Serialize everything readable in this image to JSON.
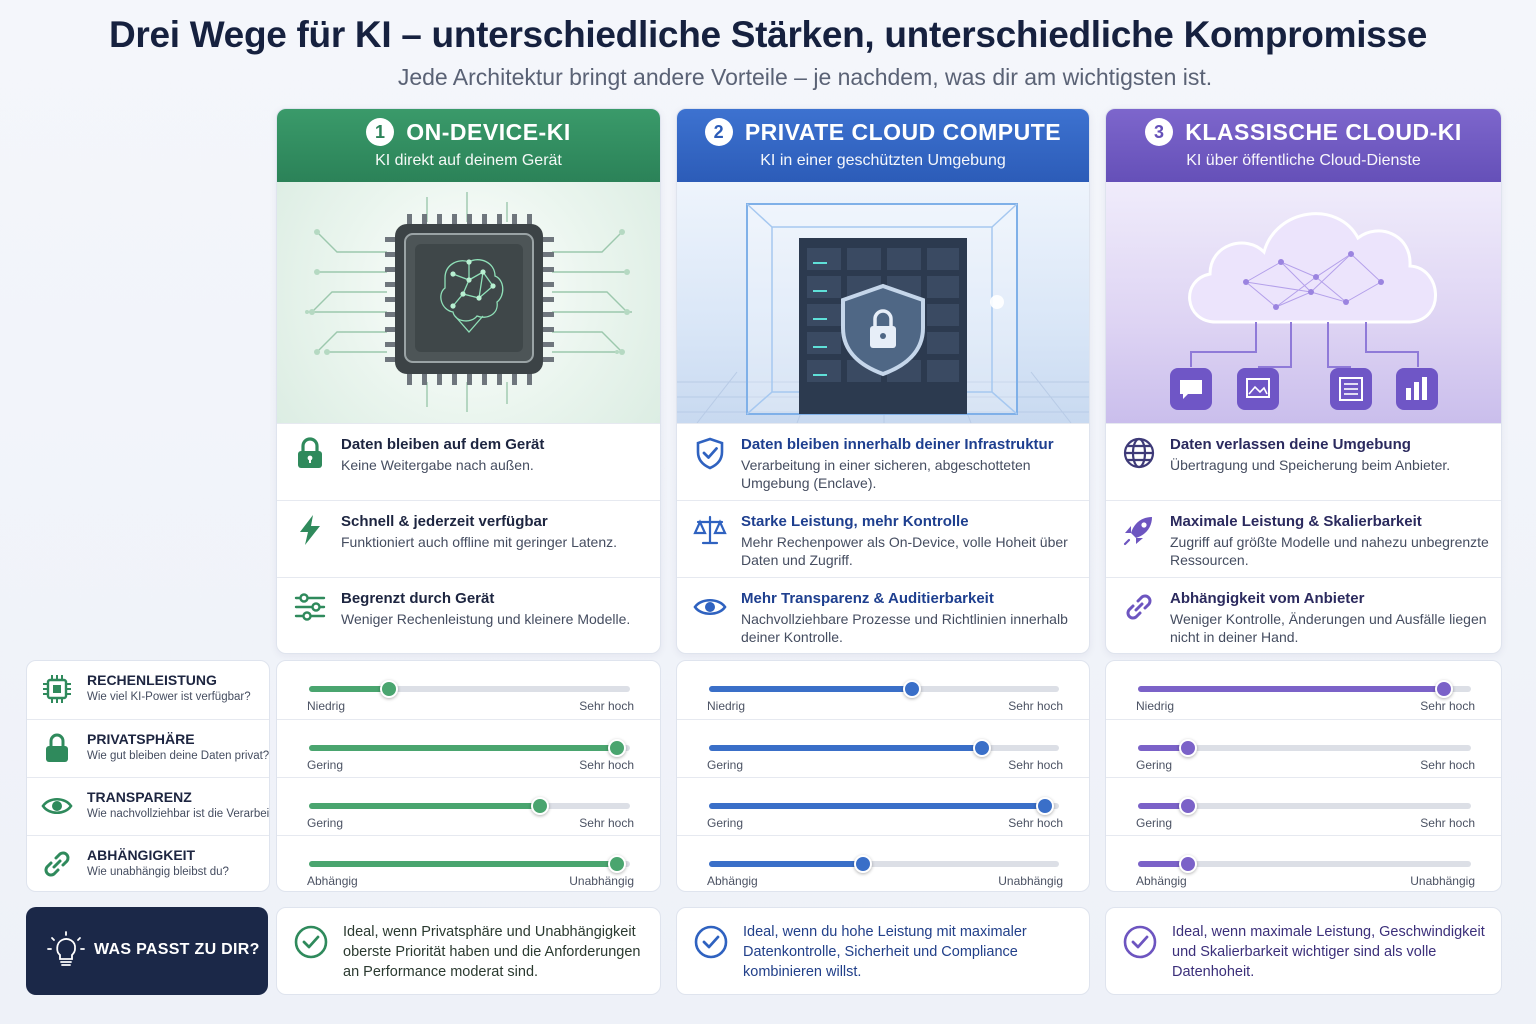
{
  "header": {
    "title": "Drei Wege für KI – unterschiedliche Stärken, unterschiedliche Kompromisse",
    "subtitle": "Jede Architektur bringt andere Vorteile – je nachdem, was dir am wichtigsten ist."
  },
  "columns": [
    {
      "number": "1",
      "title": "ON-DEVICE-KI",
      "subtitle": "KI direkt auf deinem Gerät",
      "color": "#2f8a5c",
      "image_icon": "ai-chip-brain",
      "features": [
        {
          "icon": "lock-icon",
          "title": "Daten bleiben auf dem Gerät",
          "desc": "Keine Weitergabe nach außen."
        },
        {
          "icon": "lightning-icon",
          "title": "Schnell & jederzeit verfügbar",
          "desc": "Funktioniert auch offline mit geringer Latenz."
        },
        {
          "icon": "sliders-icon",
          "title": "Begrenzt durch Gerät",
          "desc": "Weniger Rechenleistung und kleinere Modelle."
        }
      ],
      "recommendation": "Ideal, wenn Privatsphäre und Unabhängigkeit oberste Priorität haben und die Anforderungen an Performance moderat sind."
    },
    {
      "number": "2",
      "title": "PRIVATE CLOUD COMPUTE",
      "subtitle": "KI in einer geschützten Umgebung",
      "color": "#2f62c0",
      "image_icon": "secure-server-enclave",
      "features": [
        {
          "icon": "shield-check-icon",
          "title": "Daten bleiben innerhalb deiner Infrastruktur",
          "desc": "Verarbeitung in einer sicheren, abgeschotteten Umgebung (Enclave)."
        },
        {
          "icon": "scale-icon",
          "title": "Starke Leistung, mehr Kontrolle",
          "desc": "Mehr Rechenpower als On-Device, volle Hoheit über Daten und Zugriff."
        },
        {
          "icon": "eye-icon",
          "title": "Mehr Transparenz & Auditierbarkeit",
          "desc": "Nachvollziehbare Prozesse und Richtlinien innerhalb deiner Kontrolle."
        }
      ],
      "recommendation": "Ideal, wenn du hohe Leistung mit maximaler Datenkontrolle, Sicherheit und Compliance kombinieren willst."
    },
    {
      "number": "3",
      "title": "KLASSISCHE CLOUD-KI",
      "subtitle": "KI über öffentliche Cloud-Dienste",
      "color": "#6d55c0",
      "image_icon": "cloud-network",
      "features": [
        {
          "icon": "globe-icon",
          "title": "Daten verlassen deine Umgebung",
          "desc": "Übertragung und Speicherung beim Anbieter."
        },
        {
          "icon": "rocket-icon",
          "title": "Maximale Leistung & Skalierbarkeit",
          "desc": "Zugriff auf größte Modelle und nahezu unbegrenzte Ressourcen."
        },
        {
          "icon": "link-icon",
          "title": "Abhängigkeit vom Anbieter",
          "desc": "Weniger Kontrolle, Änderungen und Ausfälle liegen nicht in deiner Hand."
        }
      ],
      "recommendation": "Ideal, wenn maximale Leistung, Geschwindigkeit und Skalierbarkeit wichtiger sind als volle Datenhoheit."
    }
  ],
  "criteria": [
    {
      "icon": "chip-icon",
      "title": "RECHENLEISTUNG",
      "desc": "Wie viel KI-Power ist verfügbar?",
      "low": "Niedrig",
      "high": "Sehr hoch"
    },
    {
      "icon": "lock-icon",
      "title": "PRIVATSPHÄRE",
      "desc": "Wie gut bleiben deine Daten privat?",
      "low": "Gering",
      "high": "Sehr hoch"
    },
    {
      "icon": "eye-icon",
      "title": "TRANSPARENZ",
      "desc": "Wie nachvollziehbar ist die Verarbeitung?",
      "low": "Gering",
      "high": "Sehr hoch"
    },
    {
      "icon": "link-icon",
      "title": "ABHÄNGIGKEIT",
      "desc": "Wie unabhängig bleibst du?",
      "low": "Abhängig",
      "high": "Unabhängig"
    }
  ],
  "ratings": [
    [
      0.25,
      0.96,
      0.72,
      0.96
    ],
    [
      0.58,
      0.78,
      0.96,
      0.44
    ],
    [
      0.92,
      0.15,
      0.15,
      0.15
    ]
  ],
  "fit_box": {
    "icon": "lightbulb-icon",
    "label": "WAS PASST ZU DIR?"
  }
}
